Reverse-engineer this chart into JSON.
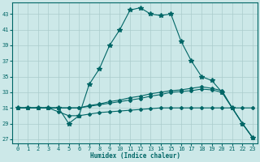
{
  "xlabel": "Humidex (Indice chaleur)",
  "bg_color": "#cce8e8",
  "grid_color": "#aacccc",
  "line_color": "#006666",
  "xlim": [
    -0.5,
    23.5
  ],
  "ylim": [
    26.5,
    44.5
  ],
  "yticks": [
    27,
    29,
    31,
    33,
    35,
    37,
    39,
    41,
    43
  ],
  "xticks": [
    0,
    1,
    2,
    3,
    4,
    5,
    6,
    7,
    8,
    9,
    10,
    11,
    12,
    13,
    14,
    15,
    16,
    17,
    18,
    19,
    20,
    21,
    22,
    23
  ],
  "line1_x": [
    0,
    1,
    2,
    3,
    4,
    5,
    6,
    7,
    8,
    9,
    10,
    11,
    12,
    13,
    14,
    15,
    16,
    17,
    18,
    19,
    20,
    21,
    22,
    23
  ],
  "line1_y": [
    31,
    31,
    31,
    31,
    31,
    29,
    30,
    34,
    36,
    39,
    41,
    43.5,
    43.8,
    43,
    42.8,
    43,
    39.5,
    37,
    35,
    34.5,
    33,
    31,
    29,
    27.2
  ],
  "line2_x": [
    0,
    1,
    2,
    3,
    4,
    5,
    6,
    7,
    8,
    9,
    10,
    11,
    12,
    13,
    14,
    15,
    16,
    17,
    18,
    19,
    20,
    21,
    22,
    23
  ],
  "line2_y": [
    31,
    31,
    31,
    31,
    31,
    31,
    31,
    31.3,
    31.5,
    31.8,
    32.0,
    32.3,
    32.5,
    32.8,
    33.0,
    33.2,
    33.3,
    33.5,
    33.7,
    33.5,
    33.2,
    31,
    29,
    27.2
  ],
  "line3_x": [
    0,
    1,
    2,
    3,
    4,
    5,
    6,
    7,
    8,
    9,
    10,
    11,
    12,
    13,
    14,
    15,
    16,
    17,
    18,
    19,
    20,
    21,
    22,
    23
  ],
  "line3_y": [
    31,
    31,
    31,
    31,
    31,
    31,
    31,
    31.2,
    31.4,
    31.6,
    31.8,
    32.0,
    32.2,
    32.5,
    32.7,
    33.0,
    33.1,
    33.2,
    33.4,
    33.3,
    33.0,
    31,
    29,
    27.2
  ],
  "line4_x": [
    0,
    1,
    2,
    3,
    4,
    5,
    6,
    7,
    8,
    9,
    10,
    11,
    12,
    13,
    14,
    15,
    16,
    17,
    18,
    19,
    20,
    21,
    22,
    23
  ],
  "line4_y": [
    31,
    31,
    31,
    31,
    30.5,
    30,
    30,
    30.2,
    30.4,
    30.5,
    30.6,
    30.7,
    30.8,
    30.9,
    31,
    31,
    31,
    31,
    31,
    31,
    31,
    31,
    31,
    31
  ]
}
